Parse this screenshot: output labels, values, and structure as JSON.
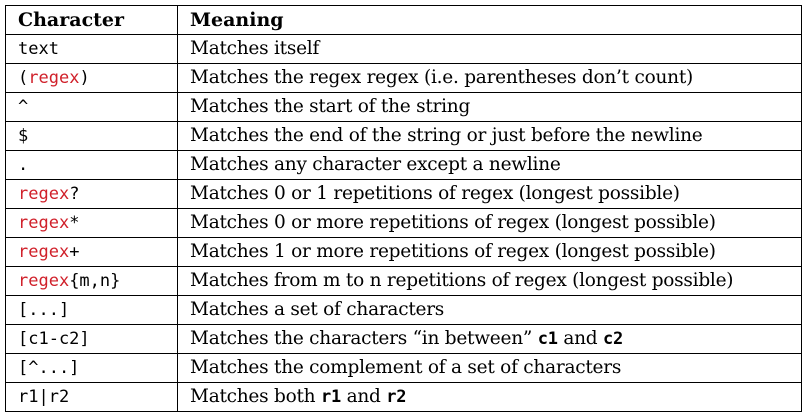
{
  "header": {
    "character": "Character",
    "meaning": "Meaning"
  },
  "rows": [
    {
      "char": [
        {
          "t": "text",
          "red": false
        }
      ],
      "meaning": [
        {
          "t": "Matches itself"
        }
      ]
    },
    {
      "char": [
        {
          "t": "(",
          "red": false
        },
        {
          "t": "regex",
          "red": true
        },
        {
          "t": ")",
          "red": false
        }
      ],
      "meaning": [
        {
          "t": "Matches the regex regex (i.e. parentheses don’t count)"
        }
      ]
    },
    {
      "char": [
        {
          "t": "^",
          "red": false
        }
      ],
      "meaning": [
        {
          "t": "Matches the start of the string"
        }
      ]
    },
    {
      "char": [
        {
          "t": "$",
          "red": false
        }
      ],
      "meaning": [
        {
          "t": "Matches the end of the string or just before the newline"
        }
      ]
    },
    {
      "char": [
        {
          "t": ".",
          "red": false
        }
      ],
      "meaning": [
        {
          "t": "Matches any character except a newline"
        }
      ]
    },
    {
      "char": [
        {
          "t": "regex",
          "red": true
        },
        {
          "t": "?",
          "red": false
        }
      ],
      "meaning": [
        {
          "t": "Matches 0 or 1 repetitions of regex (longest possible)"
        }
      ]
    },
    {
      "char": [
        {
          "t": "regex",
          "red": true
        },
        {
          "t": "*",
          "red": false
        }
      ],
      "meaning": [
        {
          "t": "Matches 0 or more repetitions of regex (longest possible)"
        }
      ]
    },
    {
      "char": [
        {
          "t": "regex",
          "red": true
        },
        {
          "t": "+",
          "red": false
        }
      ],
      "meaning": [
        {
          "t": "Matches 1 or more repetitions of regex (longest possible)"
        }
      ]
    },
    {
      "char": [
        {
          "t": "regex",
          "red": true
        },
        {
          "t": "{m,n}",
          "red": false
        }
      ],
      "meaning": [
        {
          "t": "Matches from m to n repetitions of regex (longest possible)"
        }
      ]
    },
    {
      "char": [
        {
          "t": "[...]",
          "red": false
        }
      ],
      "meaning": [
        {
          "t": "Matches a set of characters"
        }
      ]
    },
    {
      "char": [
        {
          "t": "[c1-c2]",
          "red": false
        }
      ],
      "meaning": [
        {
          "t": "Matches the characters “in between” "
        },
        {
          "t": "c1",
          "mono": true,
          "bold": true
        },
        {
          "t": " and "
        },
        {
          "t": "c2",
          "mono": true,
          "bold": true
        }
      ]
    },
    {
      "char": [
        {
          "t": "[^...]",
          "red": false
        }
      ],
      "meaning": [
        {
          "t": "Matches the complement of a set of characters"
        }
      ]
    },
    {
      "char": [
        {
          "t": "r1|r2",
          "red": false
        }
      ],
      "meaning": [
        {
          "t": "Matches both "
        },
        {
          "t": "r1",
          "mono": true,
          "bold": true
        },
        {
          "t": " and "
        },
        {
          "t": "r2",
          "mono": true,
          "bold": true
        }
      ]
    }
  ],
  "colors": {
    "highlight": "#d0202a",
    "text": "#000000",
    "border": "#000000"
  }
}
